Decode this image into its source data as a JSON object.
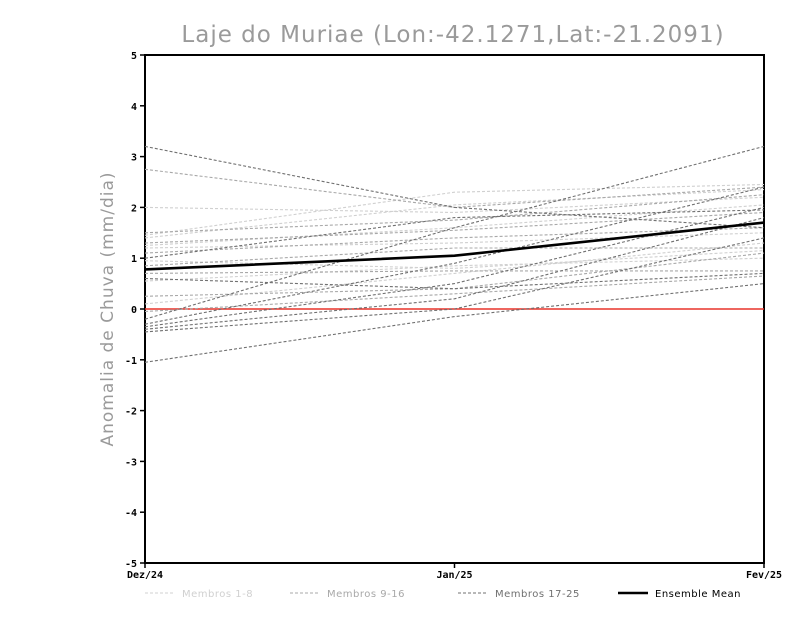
{
  "chart_data": {
    "type": "line",
    "title": "Laje do Muriae (Lon:-42.1271,Lat:-21.2091)",
    "ylabel": "Anomalia de Chuva (mm/dia)",
    "xlabel": "",
    "categories": [
      "Dez/24",
      "Jan/25",
      "Fev/25"
    ],
    "ylim": [
      -5,
      5
    ],
    "yticks": [
      "-5",
      "-4",
      "-3",
      "-2",
      "-1",
      "0",
      "1",
      "2",
      "3",
      "4",
      "5"
    ],
    "grid": false,
    "reference_line": {
      "y": 0,
      "color": "#e8332a"
    },
    "legend_position": "bottom",
    "groups": [
      {
        "name": "Membros 1-8",
        "color": "#d0d0d0"
      },
      {
        "name": "Membros 9-16",
        "color": "#a8a8a8"
      },
      {
        "name": "Membros 17-25",
        "color": "#707070"
      },
      {
        "name": "Ensemble Mean",
        "color": "#000000"
      }
    ],
    "series": [
      {
        "group": 0,
        "values": [
          1.45,
          2.3,
          2.45
        ]
      },
      {
        "group": 0,
        "values": [
          1.4,
          2.05,
          2.35
        ]
      },
      {
        "group": 0,
        "values": [
          2.0,
          1.9,
          2.2
        ]
      },
      {
        "group": 0,
        "values": [
          1.25,
          1.6,
          2.05
        ]
      },
      {
        "group": 0,
        "values": [
          1.2,
          1.3,
          1.5
        ]
      },
      {
        "group": 0,
        "values": [
          0.95,
          0.8,
          1.15
        ]
      },
      {
        "group": 0,
        "values": [
          0.55,
          0.85,
          1.0
        ]
      },
      {
        "group": 0,
        "values": [
          0.1,
          0.7,
          1.3
        ]
      },
      {
        "group": 1,
        "values": [
          2.75,
          2.0,
          2.4
        ]
      },
      {
        "group": 1,
        "values": [
          1.5,
          1.75,
          2.25
        ]
      },
      {
        "group": 1,
        "values": [
          1.3,
          1.55,
          1.9
        ]
      },
      {
        "group": 1,
        "values": [
          1.1,
          1.4,
          1.6
        ]
      },
      {
        "group": 1,
        "values": [
          0.85,
          1.2,
          1.2
        ]
      },
      {
        "group": 1,
        "values": [
          0.7,
          0.75,
          0.75
        ]
      },
      {
        "group": 1,
        "values": [
          0.25,
          0.4,
          1.1
        ]
      },
      {
        "group": 1,
        "values": [
          -0.05,
          0.3,
          0.65
        ]
      },
      {
        "group": 2,
        "values": [
          3.2,
          2.0,
          1.6
        ]
      },
      {
        "group": 2,
        "values": [
          1.0,
          1.8,
          1.95
        ]
      },
      {
        "group": 2,
        "values": [
          -0.2,
          1.6,
          3.2
        ]
      },
      {
        "group": 2,
        "values": [
          -0.3,
          0.9,
          2.4
        ]
      },
      {
        "group": 2,
        "values": [
          -0.35,
          0.5,
          2.0
        ]
      },
      {
        "group": 2,
        "values": [
          -0.4,
          0.2,
          1.8
        ]
      },
      {
        "group": 2,
        "values": [
          -0.45,
          0.0,
          1.4
        ]
      },
      {
        "group": 2,
        "values": [
          -1.05,
          -0.15,
          0.5
        ]
      },
      {
        "group": 2,
        "values": [
          0.6,
          0.4,
          0.7
        ]
      },
      {
        "group": 3,
        "values": [
          0.78,
          1.05,
          1.7
        ]
      }
    ]
  }
}
